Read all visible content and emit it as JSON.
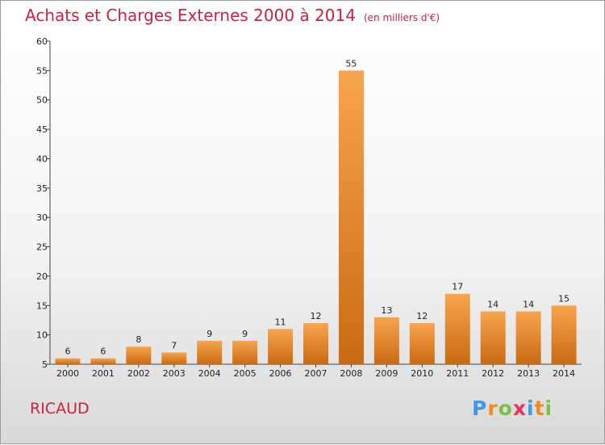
{
  "title": "Achats et Charges Externes 2000 à 2014",
  "subtitle": "(en milliers d'€)",
  "commune": "RICAUD",
  "logo": {
    "text": "Proxiti",
    "letters": [
      {
        "ch": "P",
        "color": "#3a9be0"
      },
      {
        "ch": "r",
        "color": "#f08a1d"
      },
      {
        "ch": "o",
        "color": "#7cc142"
      },
      {
        "ch": "x",
        "color": "#e8325a"
      },
      {
        "ch": "i",
        "color": "#3a9be0"
      },
      {
        "ch": "t",
        "color": "#f08a1d"
      },
      {
        "ch": "i",
        "color": "#7cc142"
      }
    ]
  },
  "colors": {
    "accent": "#c8233f",
    "bar_light": "#f7a54e",
    "bar_dark": "#c96a12"
  },
  "chart_data": {
    "type": "bar",
    "title": "Achats et Charges Externes 2000 à 2014",
    "subtitle": "(en milliers d'€)",
    "categories": [
      "2000",
      "2001",
      "2002",
      "2003",
      "2004",
      "2005",
      "2006",
      "2007",
      "2008",
      "2009",
      "2010",
      "2011",
      "2012",
      "2013",
      "2014"
    ],
    "values": [
      6,
      6,
      8,
      7,
      9,
      9,
      11,
      12,
      55,
      13,
      12,
      17,
      14,
      14,
      15
    ],
    "ylim": [
      5,
      60
    ],
    "yticks": [
      5,
      10,
      15,
      20,
      25,
      30,
      35,
      40,
      45,
      50,
      55,
      60
    ],
    "grid": false,
    "legend": "none"
  }
}
